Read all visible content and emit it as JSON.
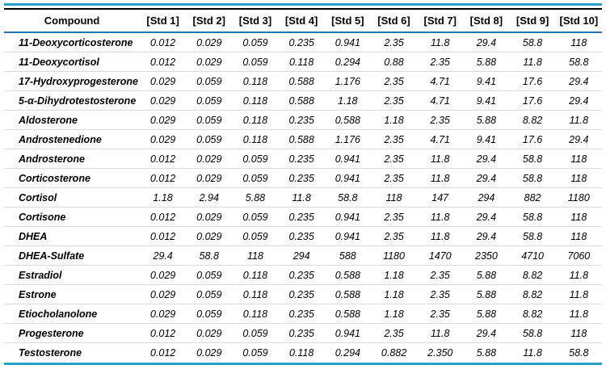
{
  "chart_data": {
    "type": "table",
    "title": "",
    "columns": [
      "Compound",
      "[Std 1]",
      "[Std 2]",
      "[Std 3]",
      "[Std 4]",
      "[Std 5]",
      "[Std 6]",
      "[Std 7]",
      "[Std 8]",
      "[Std 9]",
      "[Std 10]"
    ],
    "rows": [
      {
        "compound": "11-Deoxycorticosterone",
        "values": [
          "0.012",
          "0.029",
          "0.059",
          "0.235",
          "0.941",
          "2.35",
          "11.8",
          "29.4",
          "58.8",
          "118"
        ]
      },
      {
        "compound": "11-Deoxycortisol",
        "values": [
          "0.012",
          "0.029",
          "0.059",
          "0.118",
          "0.294",
          "0.88",
          "2.35",
          "5.88",
          "11.8",
          "58.8"
        ]
      },
      {
        "compound": "17-Hydroxyprogesterone",
        "values": [
          "0.029",
          "0.059",
          "0.118",
          "0.588",
          "1.176",
          "2.35",
          "4.71",
          "9.41",
          "17.6",
          "29.4"
        ]
      },
      {
        "compound": "5-α-Dihydrotestosterone",
        "values": [
          "0.029",
          "0.059",
          "0.118",
          "0.588",
          "1.18",
          "2.35",
          "4.71",
          "9.41",
          "17.6",
          "29.4"
        ]
      },
      {
        "compound": "Aldosterone",
        "values": [
          "0.029",
          "0.059",
          "0.118",
          "0.235",
          "0.588",
          "1.18",
          "2.35",
          "5.88",
          "8.82",
          "11.8"
        ]
      },
      {
        "compound": "Androstenedione",
        "values": [
          "0.029",
          "0.059",
          "0.118",
          "0.588",
          "1.176",
          "2.35",
          "4.71",
          "9.41",
          "17.6",
          "29.4"
        ]
      },
      {
        "compound": "Androsterone",
        "values": [
          "0.012",
          "0.029",
          "0.059",
          "0.235",
          "0.941",
          "2.35",
          "11.8",
          "29.4",
          "58.8",
          "118"
        ]
      },
      {
        "compound": "Corticosterone",
        "values": [
          "0.012",
          "0.029",
          "0.059",
          "0.235",
          "0.941",
          "2.35",
          "11.8",
          "29.4",
          "58.8",
          "118"
        ]
      },
      {
        "compound": "Cortisol",
        "values": [
          "1.18",
          "2.94",
          "5.88",
          "11.8",
          "58.8",
          "118",
          "147",
          "294",
          "882",
          "1180"
        ]
      },
      {
        "compound": "Cortisone",
        "values": [
          "0.012",
          "0.029",
          "0.059",
          "0.235",
          "0.941",
          "2.35",
          "11.8",
          "29.4",
          "58.8",
          "118"
        ]
      },
      {
        "compound": "DHEA",
        "values": [
          "0.012",
          "0.029",
          "0.059",
          "0.235",
          "0.941",
          "2.35",
          "11.8",
          "29.4",
          "58.8",
          "118"
        ]
      },
      {
        "compound": "DHEA-Sulfate",
        "values": [
          "29.4",
          "58.8",
          "118",
          "294",
          "588",
          "1180",
          "1470",
          "2350",
          "4710",
          "7060"
        ]
      },
      {
        "compound": "Estradiol",
        "values": [
          "0.029",
          "0.059",
          "0.118",
          "0.235",
          "0.588",
          "1.18",
          "2.35",
          "5.88",
          "8.82",
          "11.8"
        ]
      },
      {
        "compound": "Estrone",
        "values": [
          "0.029",
          "0.059",
          "0.118",
          "0.235",
          "0.588",
          "1.18",
          "2.35",
          "5.88",
          "8.82",
          "11.8"
        ]
      },
      {
        "compound": "Etiocholanolone",
        "values": [
          "0.029",
          "0.059",
          "0.118",
          "0.235",
          "0.588",
          "1.18",
          "2.35",
          "5.88",
          "8.82",
          "11.8"
        ]
      },
      {
        "compound": "Progesterone",
        "values": [
          "0.012",
          "0.029",
          "0.059",
          "0.235",
          "0.941",
          "2.35",
          "11.8",
          "29.4",
          "58.8",
          "118"
        ]
      },
      {
        "compound": "Testosterone",
        "values": [
          "0.012",
          "0.029",
          "0.059",
          "0.118",
          "0.294",
          "0.882",
          "2.350",
          "5.88",
          "11.8",
          "58.8"
        ]
      }
    ]
  },
  "style": {
    "accent_teal": "#2AA0C8",
    "header_top_rule": "#000000",
    "header_bottom_rule": "#2E75B6",
    "row_divider": "#DBDBDB",
    "text_color": "#000000"
  }
}
